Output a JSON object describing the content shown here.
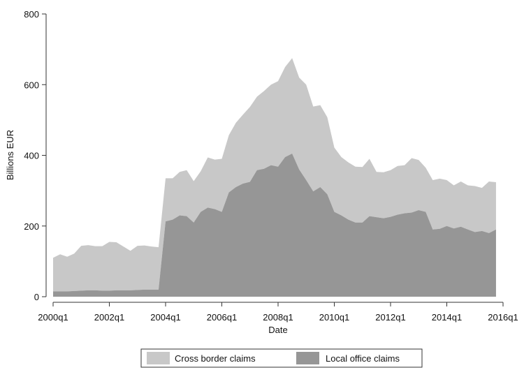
{
  "chart_data": {
    "type": "area",
    "stacked": true,
    "title": "",
    "xlabel": "Date",
    "ylabel": "Billions EUR",
    "ylim": [
      0,
      800
    ],
    "yticks": [
      "0",
      "200",
      "400",
      "600",
      "800"
    ],
    "xlim": [
      "2000q1",
      "2016q1"
    ],
    "xticks": [
      "2000q1",
      "2002q1",
      "2004q1",
      "2006q1",
      "2008q1",
      "2010q1",
      "2012q1",
      "2014q1",
      "2016q1"
    ],
    "grid": false,
    "legend_position": "bottom",
    "x": [
      "2000q1",
      "2000q2",
      "2000q3",
      "2000q4",
      "2001q1",
      "2001q2",
      "2001q3",
      "2001q4",
      "2002q1",
      "2002q2",
      "2002q3",
      "2002q4",
      "2003q1",
      "2003q2",
      "2003q3",
      "2003q4",
      "2004q1",
      "2004q2",
      "2004q3",
      "2004q4",
      "2005q1",
      "2005q2",
      "2005q3",
      "2005q4",
      "2006q1",
      "2006q2",
      "2006q3",
      "2006q4",
      "2007q1",
      "2007q2",
      "2007q3",
      "2007q4",
      "2008q1",
      "2008q2",
      "2008q3",
      "2008q4",
      "2009q1",
      "2009q2",
      "2009q3",
      "2009q4",
      "2010q1",
      "2010q2",
      "2010q3",
      "2010q4",
      "2011q1",
      "2011q2",
      "2011q3",
      "2011q4",
      "2012q1",
      "2012q2",
      "2012q3",
      "2012q4",
      "2013q1",
      "2013q2",
      "2013q3",
      "2013q4",
      "2014q1",
      "2014q2",
      "2014q3",
      "2014q4",
      "2015q1",
      "2015q2",
      "2015q3",
      "2015q4"
    ],
    "series": [
      {
        "name": "Local office claims",
        "color": "#969696",
        "values": [
          15,
          15,
          15,
          16,
          17,
          18,
          18,
          17,
          17,
          18,
          18,
          18,
          19,
          20,
          20,
          20,
          213,
          218,
          230,
          228,
          210,
          240,
          252,
          248,
          240,
          295,
          310,
          320,
          325,
          358,
          362,
          372,
          368,
          395,
          405,
          360,
          330,
          298,
          310,
          290,
          240,
          230,
          218,
          210,
          210,
          228,
          225,
          222,
          226,
          232,
          236,
          238,
          245,
          240,
          190,
          192,
          200,
          193,
          198,
          190,
          183,
          186,
          180,
          190
        ]
      },
      {
        "name": "Cross border claims",
        "color": "#c8c8c8",
        "values": [
          95,
          105,
          98,
          106,
          127,
          128,
          125,
          126,
          138,
          136,
          124,
          112,
          125,
          125,
          122,
          120,
          122,
          117,
          123,
          130,
          117,
          115,
          142,
          140,
          150,
          162,
          182,
          195,
          212,
          208,
          220,
          228,
          242,
          255,
          270,
          260,
          270,
          240,
          232,
          218,
          182,
          165,
          162,
          158,
          157,
          162,
          128,
          130,
          132,
          138,
          136,
          154,
          142,
          125,
          140,
          142,
          130,
          122,
          128,
          125,
          130,
          122,
          146,
          134
        ]
      }
    ],
    "legend": [
      "Cross border claims",
      "Local office claims"
    ]
  }
}
